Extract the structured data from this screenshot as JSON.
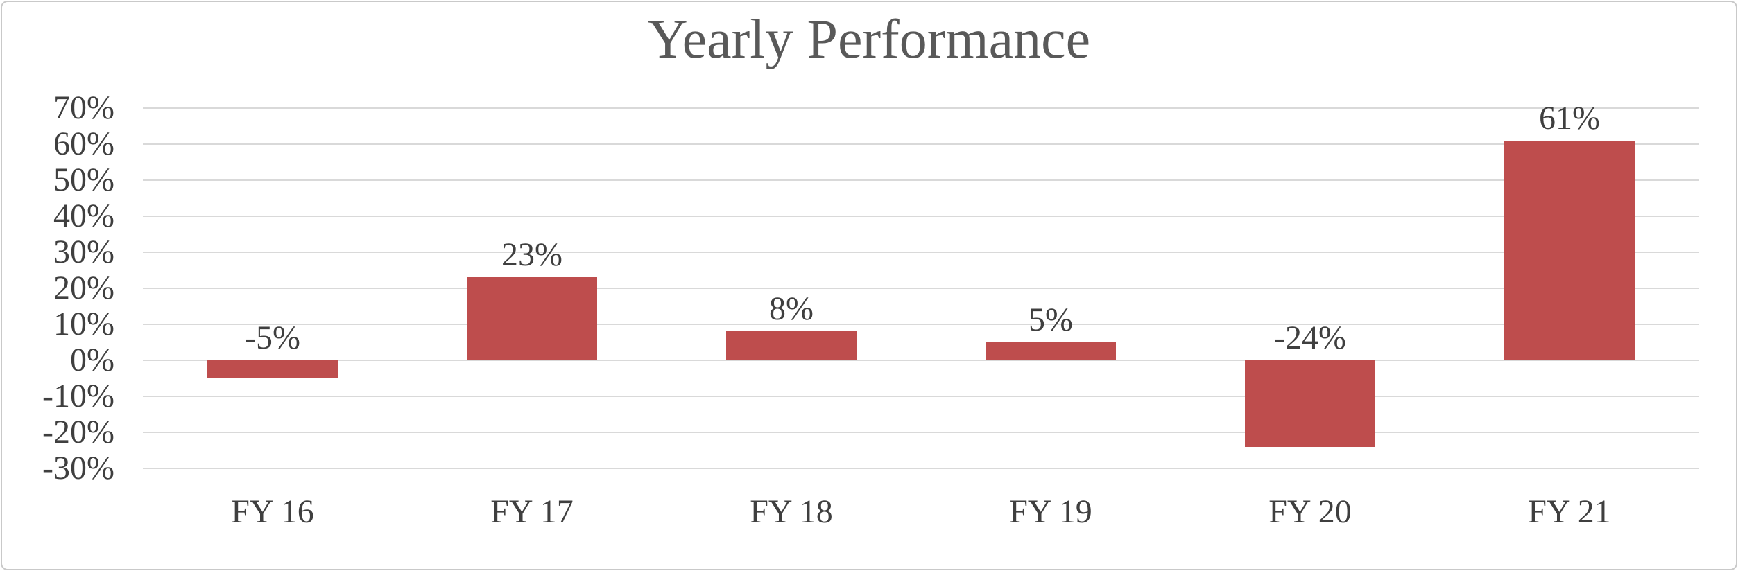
{
  "chart_data": {
    "type": "bar",
    "title": "Yearly Performance",
    "categories": [
      "FY 16",
      "FY 17",
      "FY 18",
      "FY 19",
      "FY 20",
      "FY 21"
    ],
    "values": [
      -5,
      23,
      8,
      5,
      -24,
      61
    ],
    "data_labels": [
      "-5%",
      "23%",
      "8%",
      "5%",
      "-24%",
      "61%"
    ],
    "y_tick_values": [
      70,
      60,
      50,
      40,
      30,
      20,
      10,
      0,
      -10,
      -20,
      -30
    ],
    "y_tick_labels": [
      "70%",
      "60%",
      "50%",
      "40%",
      "30%",
      "20%",
      "10%",
      "0%",
      "-10%",
      "-20%",
      "-30%"
    ],
    "ylim": [
      -30,
      70
    ],
    "grid": true,
    "legend": false,
    "xlabel": "",
    "ylabel": "",
    "colors": {
      "bar": "#BE4D4D",
      "gridline": "#D9D9D9",
      "tick_text": "#3F3F3F",
      "data_label_text": "#3F3F3F",
      "title_text": "#595959",
      "frame_border": "#C9C9C9",
      "background": "#FFFFFF"
    }
  }
}
